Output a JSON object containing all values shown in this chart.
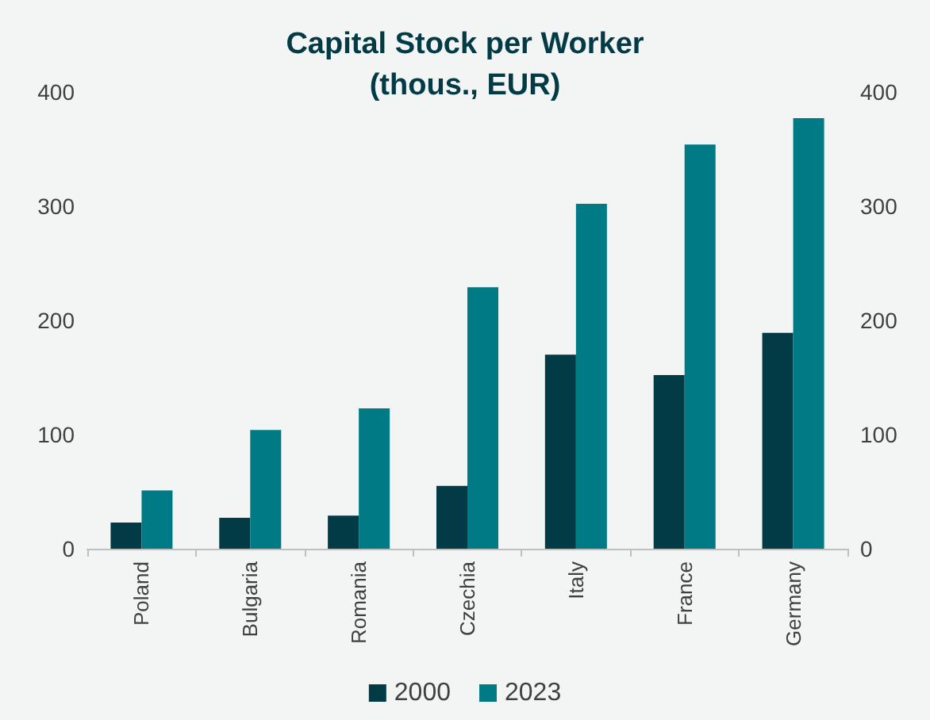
{
  "chart_data": {
    "type": "bar",
    "title": "Capital Stock per Worker\n(thous., EUR)",
    "categories": [
      "Poland",
      "Bulgaria",
      "Romania",
      "Czechia",
      "Italy",
      "France",
      "Germany"
    ],
    "series": [
      {
        "name": "2000",
        "color": "#023a45",
        "values": [
          23,
          27,
          29,
          55,
          170,
          152,
          189
        ]
      },
      {
        "name": "2023",
        "color": "#007a85",
        "values": [
          51,
          104,
          123,
          229,
          302,
          354,
          377
        ]
      }
    ],
    "ylim": [
      0,
      400
    ],
    "yticks": [
      0,
      100,
      200,
      300,
      400
    ],
    "y2lim": [
      0,
      400
    ],
    "y2ticks": [
      0,
      100,
      200,
      300,
      400
    ],
    "grid": false,
    "legend": "bottom"
  }
}
